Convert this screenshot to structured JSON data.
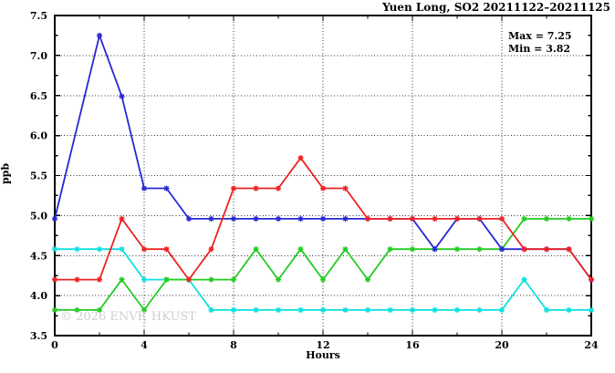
{
  "title": "Yuen Long, SO2 20211122–20211125",
  "stats": {
    "max_label": "Max = 7.25",
    "min_label": "Min = 3.82"
  },
  "watermark": "© 2026 ENVF, HKUST",
  "colors": {
    "background": "#ffffff",
    "axis": "#000000",
    "grid": "#333333",
    "watermark_gray": "#cfcfcf"
  },
  "chart_data": {
    "type": "line",
    "title": "Yuen Long, SO2 20211122–20211125",
    "xlabel": "Hours",
    "ylabel": "ppb",
    "xlim": [
      0,
      24
    ],
    "ylim": [
      3.5,
      7.5
    ],
    "grid": "dotted lines at major ticks",
    "legend_position": "none",
    "annotations": [
      "Max = 7.25",
      "Min = 3.82"
    ],
    "x_major_ticks": [
      0,
      4,
      8,
      12,
      16,
      20,
      24
    ],
    "x_minor_ticks": [
      2,
      6,
      10,
      14,
      18,
      22
    ],
    "y_major_ticks": [
      3.5,
      4.0,
      4.5,
      5.0,
      5.5,
      6.0,
      6.5,
      7.0,
      7.5
    ],
    "y_minor_ticks": [
      3.75,
      4.25,
      4.75,
      5.25,
      5.75,
      6.25,
      6.75,
      7.25
    ],
    "x_grid": [
      4,
      8,
      12,
      16,
      20
    ],
    "y_grid": [
      4.0,
      4.5,
      5.0,
      5.5,
      6.0,
      6.5,
      7.0
    ],
    "x": [
      0,
      1,
      2,
      3,
      4,
      5,
      6,
      7,
      8,
      9,
      10,
      11,
      12,
      13,
      14,
      15,
      16,
      17,
      18,
      19,
      20,
      21,
      22,
      23,
      24
    ],
    "series": [
      {
        "name": "series-cyan",
        "color": "#0ce0e0",
        "values": [
          4.58,
          4.58,
          4.58,
          4.58,
          4.2,
          4.2,
          4.2,
          3.82,
          3.82,
          3.82,
          3.82,
          3.82,
          3.82,
          3.82,
          3.82,
          3.82,
          3.82,
          3.82,
          3.82,
          3.82,
          3.82,
          4.2,
          3.82,
          3.82,
          3.82
        ]
      },
      {
        "name": "series-green",
        "color": "#22cc22",
        "values": [
          3.82,
          3.82,
          3.82,
          4.2,
          3.82,
          4.2,
          4.2,
          4.2,
          4.2,
          4.58,
          4.2,
          4.58,
          4.2,
          4.58,
          4.2,
          4.58,
          4.58,
          4.58,
          4.58,
          4.58,
          4.58,
          4.96,
          4.96,
          4.96,
          4.96
        ]
      },
      {
        "name": "series-blue",
        "color": "#2828d4",
        "values": [
          4.96,
          null,
          7.25,
          6.49,
          5.34,
          5.34,
          4.96,
          4.96,
          4.96,
          4.96,
          4.96,
          4.96,
          4.96,
          4.96,
          4.96,
          4.96,
          4.96,
          4.58,
          4.96,
          4.96,
          4.58,
          4.58,
          4.58,
          4.58,
          4.2
        ]
      },
      {
        "name": "series-red",
        "color": "#ee2222",
        "values": [
          4.2,
          4.2,
          4.2,
          4.96,
          4.58,
          4.58,
          4.2,
          4.58,
          5.34,
          5.34,
          5.34,
          5.72,
          5.34,
          5.34,
          4.96,
          4.96,
          4.96,
          4.96,
          4.96,
          4.96,
          4.96,
          4.58,
          4.58,
          4.58,
          4.2
        ]
      }
    ],
    "max": 7.25,
    "min": 3.82
  }
}
